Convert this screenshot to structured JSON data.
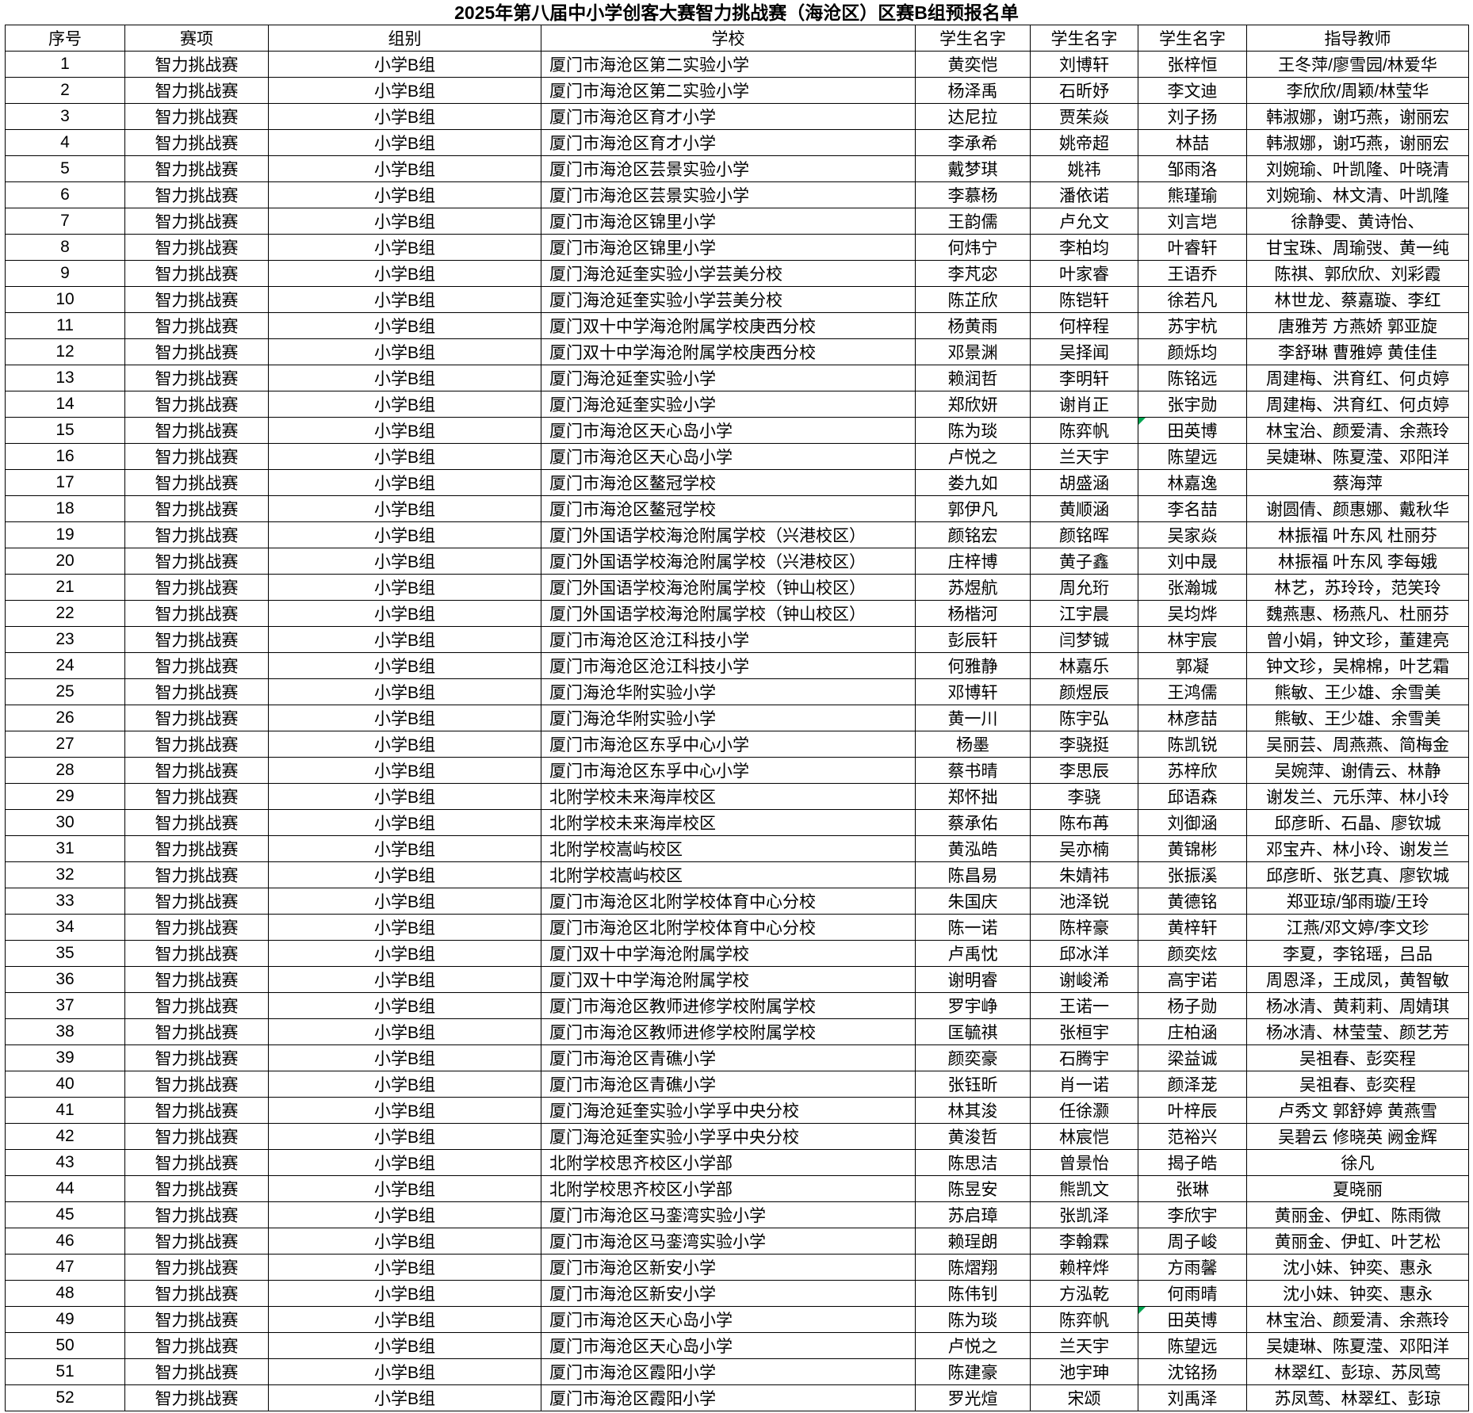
{
  "title": "2025年第八届中小学创客大赛智力挑战赛（海沧区）区赛B组预报名单",
  "colors": {
    "grid": "#000000",
    "note_indicator": "#00a550"
  },
  "table": {
    "headers": [
      "序号",
      "赛项",
      "组别",
      "学校",
      "学生名字",
      "学生名字",
      "学生名字",
      "指导教师"
    ],
    "event": "智力挑战赛",
    "group": "小学B组",
    "rows": [
      {
        "n": 1,
        "school": "厦门市海沧区第二实验小学",
        "s1": "黄奕恺",
        "s2": "刘博轩",
        "s3": "张梓恒",
        "teachers": "王冬萍/廖雪园/林爱华",
        "note": false
      },
      {
        "n": 2,
        "school": "厦门市海沧区第二实验小学",
        "s1": "杨泽禹",
        "s2": "石昕妤",
        "s3": "李文迪",
        "teachers": "李欣欣/周颖/林莹华",
        "note": false
      },
      {
        "n": 3,
        "school": "厦门市海沧区育才小学",
        "s1": "达尼拉",
        "s2": "贾茱焱",
        "s3": "刘子扬",
        "teachers": "韩淑娜，谢巧燕，谢丽宏",
        "note": false
      },
      {
        "n": 4,
        "school": "厦门市海沧区育才小学",
        "s1": "李承希",
        "s2": "姚帝超",
        "s3": "林喆",
        "teachers": "韩淑娜，谢巧燕，谢丽宏",
        "note": false
      },
      {
        "n": 5,
        "school": "厦门市海沧区芸景实验小学",
        "s1": "戴梦琪",
        "s2": "姚祎",
        "s3": "邹雨洛",
        "teachers": "刘婉瑜、叶凯隆、叶晓清",
        "note": false
      },
      {
        "n": 6,
        "school": "厦门市海沧区芸景实验小学",
        "s1": "李慕杨",
        "s2": "潘依诺",
        "s3": "熊瑾瑜",
        "teachers": "刘婉瑜、林文清、叶凯隆",
        "note": false
      },
      {
        "n": 7,
        "school": "厦门市海沧区锦里小学",
        "s1": "王韵儒",
        "s2": "卢允文",
        "s3": "刘言垲",
        "teachers": "徐静雯、黄诗怡、",
        "note": false
      },
      {
        "n": 8,
        "school": "厦门市海沧区锦里小学",
        "s1": "何炜宁",
        "s2": "李柏均",
        "s3": "叶睿轩",
        "teachers": "甘宝珠、周瑜弢、黄一纯",
        "note": false
      },
      {
        "n": 9,
        "school": "厦门海沧延奎实验小学芸美分校",
        "s1": "李芃宓",
        "s2": "叶家睿",
        "s3": "王语乔",
        "teachers": "陈祺、郭欣欣、刘彩霞",
        "note": false
      },
      {
        "n": 10,
        "school": "厦门海沧延奎实验小学芸美分校",
        "s1": "陈芷欣",
        "s2": "陈铠轩",
        "s3": "徐若凡",
        "teachers": "林世龙、蔡嘉璇、李红",
        "note": false
      },
      {
        "n": 11,
        "school": "厦门双十中学海沧附属学校庚西分校",
        "s1": "杨黄雨",
        "s2": "何梓程",
        "s3": "苏宇杭",
        "teachers": "唐雅芳 方燕娇  郭亚旋",
        "note": false
      },
      {
        "n": 12,
        "school": "厦门双十中学海沧附属学校庚西分校",
        "s1": "邓景渊",
        "s2": "吴择闻",
        "s3": "颜烁均",
        "teachers": "李舒琳 曹雅婷  黄佳佳",
        "note": false
      },
      {
        "n": 13,
        "school": "厦门海沧延奎实验小学",
        "s1": "赖润哲",
        "s2": "李明轩",
        "s3": "陈铭远",
        "teachers": "周建梅、洪育红、何贞婷",
        "note": false
      },
      {
        "n": 14,
        "school": "厦门海沧延奎实验小学",
        "s1": "郑欣妍",
        "s2": "谢肖正",
        "s3": "张宇勋",
        "teachers": "周建梅、洪育红、何贞婷",
        "note": false
      },
      {
        "n": 15,
        "school": "厦门市海沧区天心岛小学",
        "s1": "陈为琰",
        "s2": "陈弈帆",
        "s3": "田英博",
        "teachers": "林宝治、颜爱清、余燕玲",
        "note": true
      },
      {
        "n": 16,
        "school": "厦门市海沧区天心岛小学",
        "s1": "卢悦之",
        "s2": "兰天宇",
        "s3": "陈望远",
        "teachers": "吴婕琳、陈夏滢、邓阳洋",
        "note": false
      },
      {
        "n": 17,
        "school": "厦门市海沧区鳌冠学校",
        "s1": "娄九如",
        "s2": "胡盛涵",
        "s3": "林嘉逸",
        "teachers": "蔡海萍",
        "note": false
      },
      {
        "n": 18,
        "school": "厦门市海沧区鳌冠学校",
        "s1": "郭伊凡",
        "s2": "黄顺涵",
        "s3": "李名喆",
        "teachers": "谢圆倩、颜惠娜、戴秋华",
        "note": false
      },
      {
        "n": 19,
        "school": "厦门外国语学校海沧附属学校（兴港校区）",
        "s1": "颜铭宏",
        "s2": "颜铭晖",
        "s3": "吴家焱",
        "teachers": "林振福 叶东风  杜丽芬",
        "note": false
      },
      {
        "n": 20,
        "school": "厦门外国语学校海沧附属学校（兴港校区）",
        "s1": "庄梓博",
        "s2": "黄子鑫",
        "s3": "刘中晟",
        "teachers": "林振福 叶东风 李每娥",
        "note": false
      },
      {
        "n": 21,
        "school": "厦门外国语学校海沧附属学校（钟山校区）",
        "s1": "苏煜航",
        "s2": "周允珩",
        "s3": "张瀚城",
        "teachers": "林艺，苏玲玲，范笑玲",
        "note": false
      },
      {
        "n": 22,
        "school": "厦门外国语学校海沧附属学校（钟山校区）",
        "s1": "杨楷河",
        "s2": "江宇晨",
        "s3": "吴均烨",
        "teachers": "魏燕惠、杨燕凡、杜丽芬",
        "note": false
      },
      {
        "n": 23,
        "school": "厦门市海沧区沧江科技小学",
        "s1": "彭辰轩",
        "s2": "闫梦铖",
        "s3": "林宇宸",
        "teachers": "曾小娟，钟文珍，董建亮",
        "note": false
      },
      {
        "n": 24,
        "school": "厦门市海沧区沧江科技小学",
        "s1": "何雅静",
        "s2": "林嘉乐",
        "s3": "郭凝",
        "teachers": "钟文珍，吴棉棉，叶艺霜",
        "note": false
      },
      {
        "n": 25,
        "school": "厦门海沧华附实验小学",
        "s1": "邓博轩",
        "s2": "颜煜辰",
        "s3": "王鸿儒",
        "teachers": "熊敏、王少雄、余雪美",
        "note": false
      },
      {
        "n": 26,
        "school": "厦门海沧华附实验小学",
        "s1": "黄一川",
        "s2": "陈宇弘",
        "s3": "林彦喆",
        "teachers": "熊敏、王少雄、余雪美",
        "note": false
      },
      {
        "n": 27,
        "school": "厦门市海沧区东孚中心小学",
        "s1": "杨墨",
        "s2": "李骁挺",
        "s3": "陈凯锐",
        "teachers": "吴丽芸、周燕燕、简梅金",
        "note": false
      },
      {
        "n": 28,
        "school": "厦门市海沧区东孚中心小学",
        "s1": "蔡书晴",
        "s2": "李思辰",
        "s3": "苏梓欣",
        "teachers": "吴婉萍、谢倩云、林静",
        "note": false
      },
      {
        "n": 29,
        "school": "北附学校未来海岸校区",
        "s1": "郑怀拙",
        "s2": "李骁",
        "s3": "邱语森",
        "teachers": "谢发兰、元乐萍、林小玲",
        "note": false
      },
      {
        "n": 30,
        "school": "北附学校未来海岸校区",
        "s1": "蔡承佑",
        "s2": "陈布苒",
        "s3": "刘御涵",
        "teachers": "邱彦昕、石晶、廖钦城",
        "note": false
      },
      {
        "n": 31,
        "school": "北附学校嵩屿校区",
        "s1": "黄泓皓",
        "s2": "吴亦楠",
        "s3": "黄锦彬",
        "teachers": "邓宝卉、林小玲、谢发兰",
        "note": false
      },
      {
        "n": 32,
        "school": "北附学校嵩屿校区",
        "s1": "陈昌易",
        "s2": "朱婧祎",
        "s3": "张振溪",
        "teachers": "邱彦昕、张艺真、廖钦城",
        "note": false
      },
      {
        "n": 33,
        "school": "厦门市海沧区北附学校体育中心分校",
        "s1": "朱国庆",
        "s2": "池泽锐",
        "s3": "黄德铭",
        "teachers": "郑亚琼/邹雨璇/王玲",
        "note": false
      },
      {
        "n": 34,
        "school": "厦门市海沧区北附学校体育中心分校",
        "s1": "陈一诺",
        "s2": "陈梓豪",
        "s3": "黄梓轩",
        "teachers": "江燕/邓文婷/李文珍",
        "note": false
      },
      {
        "n": 35,
        "school": "厦门双十中学海沧附属学校",
        "s1": "卢禹忱",
        "s2": "邱冰洋",
        "s3": "颜奕炫",
        "teachers": "李夏，李铭瑶，吕品",
        "note": false
      },
      {
        "n": 36,
        "school": "厦门双十中学海沧附属学校",
        "s1": "谢明睿",
        "s2": "谢峻浠",
        "s3": "高宇诺",
        "teachers": "周恩泽，王成凤，黄智敏",
        "note": false
      },
      {
        "n": 37,
        "school": "厦门市海沧区教师进修学校附属学校",
        "s1": "罗宇峥",
        "s2": "王诺一",
        "s3": "杨子勋",
        "teachers": "杨冰清、黄莉莉、周婧琪",
        "note": false
      },
      {
        "n": 38,
        "school": "厦门市海沧区教师进修学校附属学校",
        "s1": "匡毓祺",
        "s2": "张桓宇",
        "s3": "庄柏涵",
        "teachers": "杨冰清、林莹莹、颜艺芳",
        "note": false
      },
      {
        "n": 39,
        "school": "厦门市海沧区青礁小学",
        "s1": "颜奕豪",
        "s2": "石腾宇",
        "s3": "梁益诚",
        "teachers": "吴祖春、彭奕程",
        "note": false
      },
      {
        "n": 40,
        "school": "厦门市海沧区青礁小学",
        "s1": "张钰昕",
        "s2": "肖一诺",
        "s3": "颜泽茏",
        "teachers": "吴祖春、彭奕程",
        "note": false
      },
      {
        "n": 41,
        "school": "厦门海沧延奎实验小学孚中央分校",
        "s1": "林其浚",
        "s2": "任徐灏",
        "s3": "叶梓辰",
        "teachers": "卢秀文 郭舒婷 黄燕雪",
        "note": false
      },
      {
        "n": 42,
        "school": "厦门海沧延奎实验小学孚中央分校",
        "s1": "黄浚哲",
        "s2": "林宸恺",
        "s3": "范裕兴",
        "teachers": "吴碧云 修晓英 阙金辉",
        "note": false
      },
      {
        "n": 43,
        "school": "北附学校思齐校区小学部",
        "s1": "陈思洁",
        "s2": "曾景怡",
        "s3": "揭子皓",
        "teachers": "徐凡",
        "note": false
      },
      {
        "n": 44,
        "school": "北附学校思齐校区小学部",
        "s1": "陈昱安",
        "s2": "熊凯文",
        "s3": "张琳",
        "teachers": "夏晓丽",
        "note": false
      },
      {
        "n": 45,
        "school": "厦门市海沧区马銮湾实验小学",
        "s1": "苏启璋",
        "s2": "张凯泽",
        "s3": "李欣宇",
        "teachers": "黄丽金、伊虹、陈雨微",
        "note": false
      },
      {
        "n": 46,
        "school": "厦门市海沧区马銮湾实验小学",
        "s1": "赖珵朗",
        "s2": "李翰霖",
        "s3": "周子峻",
        "teachers": "黄丽金、伊虹、叶艺松",
        "note": false
      },
      {
        "n": 47,
        "school": "厦门市海沧区新安小学",
        "s1": "陈熠翔",
        "s2": "赖梓烨",
        "s3": "方雨馨",
        "teachers": "沈小妹、钟奕、惠永",
        "note": false
      },
      {
        "n": 48,
        "school": "厦门市海沧区新安小学",
        "s1": "陈伟钊",
        "s2": "方泓乾",
        "s3": "何雨晴",
        "teachers": "沈小妹、钟奕、惠永",
        "note": false
      },
      {
        "n": 49,
        "school": "厦门市海沧区天心岛小学",
        "s1": "陈为琰",
        "s2": "陈弈帆",
        "s3": "田英博",
        "teachers": "林宝治、颜爱清、余燕玲",
        "note": true
      },
      {
        "n": 50,
        "school": "厦门市海沧区天心岛小学",
        "s1": "卢悦之",
        "s2": "兰天宇",
        "s3": "陈望远",
        "teachers": "吴婕琳、陈夏滢、邓阳洋",
        "note": false
      },
      {
        "n": 51,
        "school": "厦门市海沧区霞阳小学",
        "s1": "陈建豪",
        "s2": "池宇珅",
        "s3": "沈铭扬",
        "teachers": "林翠红、彭琼、苏凤莺",
        "note": false
      },
      {
        "n": 52,
        "school": "厦门市海沧区霞阳小学",
        "s1": "罗光煊",
        "s2": "宋颂",
        "s3": "刘禹泽",
        "teachers": "苏凤莺、林翠红、彭琼",
        "note": false
      }
    ]
  }
}
